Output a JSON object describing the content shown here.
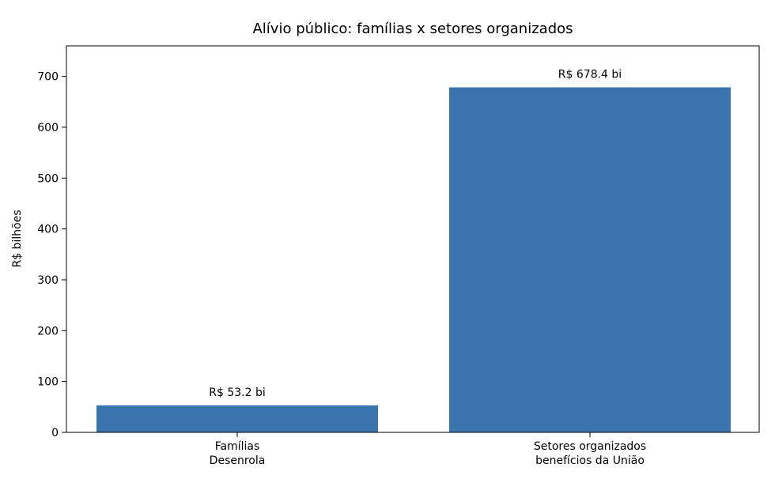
{
  "chart_data": {
    "type": "bar",
    "title": "Alívio público: famílias x setores organizados",
    "xlabel": "",
    "ylabel": "R$ bilhões",
    "categories": [
      [
        "Famílias",
        "Desenrola"
      ],
      [
        "Setores organizados",
        "benefícios da União"
      ]
    ],
    "values": [
      53.2,
      678.4
    ],
    "data_labels": [
      "R$ 53.2 bi",
      "R$ 678.4 bi"
    ],
    "ylim": [
      0,
      760
    ],
    "yticks": [
      0,
      100,
      200,
      300,
      400,
      500,
      600,
      700
    ],
    "grid": false,
    "legend": "none",
    "colors": {
      "bar": "#3a75ae",
      "axis": "#000000"
    }
  }
}
